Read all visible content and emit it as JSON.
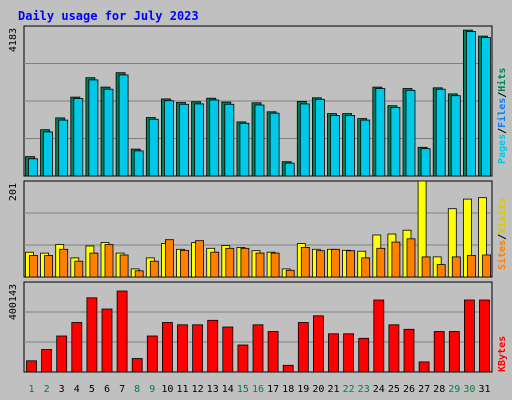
{
  "title": "Daily usage for July 2023",
  "chart_data": [
    {
      "type": "bar",
      "panel": "top",
      "ymax_label": "4183",
      "ymax": 4183,
      "legend": [
        "Pages",
        "Files",
        "Hits"
      ],
      "series": [
        {
          "name": "Hits",
          "color": "#00805c",
          "values": [
            540,
            1290,
            1620,
            2200,
            2740,
            2480,
            2880,
            750,
            1630,
            2150,
            2050,
            2070,
            2170,
            2060,
            1510,
            2040,
            1790,
            400,
            2080,
            2180,
            1740,
            1740,
            1600,
            2480,
            1960,
            2440,
            800,
            2460,
            2290,
            4070,
            3900
          ]
        },
        {
          "name": "Files",
          "color": "#00c8e8",
          "values": [
            480,
            1230,
            1560,
            2160,
            2680,
            2420,
            2820,
            700,
            1580,
            2100,
            2000,
            2010,
            2120,
            2000,
            1470,
            1980,
            1750,
            360,
            2010,
            2140,
            1690,
            1690,
            1560,
            2440,
            1910,
            2390,
            760,
            2420,
            2240,
            4030,
            3860
          ]
        }
      ]
    },
    {
      "type": "bar",
      "panel": "middle",
      "ymax_label": "201",
      "ymax": 201,
      "legend": [
        "Sites",
        "Visits"
      ],
      "series": [
        {
          "name": "Visits",
          "color": "#ffff00",
          "values": [
            52,
            50,
            68,
            40,
            65,
            72,
            50,
            17,
            40,
            70,
            58,
            72,
            60,
            66,
            62,
            55,
            52,
            17,
            70,
            58,
            58,
            56,
            54,
            88,
            90,
            98,
            201,
            42,
            143,
            163,
            166
          ]
        },
        {
          "name": "Sites",
          "color": "#ff8000",
          "values": [
            45,
            45,
            58,
            33,
            50,
            68,
            46,
            13,
            33,
            78,
            56,
            76,
            52,
            60,
            60,
            50,
            50,
            14,
            62,
            55,
            58,
            55,
            40,
            60,
            73,
            80,
            42,
            26,
            42,
            45,
            46
          ]
        }
      ]
    },
    {
      "type": "bar",
      "panel": "bottom",
      "ymax_label": "400143",
      "ymax": 400143,
      "legend": [
        "KBytes"
      ],
      "series": [
        {
          "name": "KBytes",
          "color": "#ff0000",
          "values": [
            50000,
            100000,
            160000,
            220000,
            330000,
            280000,
            360000,
            60000,
            160000,
            220000,
            210000,
            210000,
            230000,
            200000,
            120000,
            210000,
            180000,
            30000,
            220000,
            250000,
            170000,
            170000,
            150000,
            320000,
            210000,
            190000,
            45000,
            180000,
            180000,
            320000,
            320000
          ]
        }
      ]
    }
  ],
  "days": [
    {
      "label": "1",
      "weekend": true
    },
    {
      "label": "2",
      "weekend": true
    },
    {
      "label": "3",
      "weekend": false
    },
    {
      "label": "4",
      "weekend": false
    },
    {
      "label": "5",
      "weekend": false
    },
    {
      "label": "6",
      "weekend": false
    },
    {
      "label": "7",
      "weekend": false
    },
    {
      "label": "8",
      "weekend": true
    },
    {
      "label": "9",
      "weekend": true
    },
    {
      "label": "10",
      "weekend": false
    },
    {
      "label": "11",
      "weekend": false
    },
    {
      "label": "12",
      "weekend": false
    },
    {
      "label": "13",
      "weekend": false
    },
    {
      "label": "14",
      "weekend": false
    },
    {
      "label": "15",
      "weekend": true
    },
    {
      "label": "16",
      "weekend": true
    },
    {
      "label": "17",
      "weekend": false
    },
    {
      "label": "18",
      "weekend": false
    },
    {
      "label": "19",
      "weekend": false
    },
    {
      "label": "20",
      "weekend": false
    },
    {
      "label": "21",
      "weekend": false
    },
    {
      "label": "22",
      "weekend": true
    },
    {
      "label": "23",
      "weekend": true
    },
    {
      "label": "24",
      "weekend": false
    },
    {
      "label": "25",
      "weekend": false
    },
    {
      "label": "26",
      "weekend": false
    },
    {
      "label": "27",
      "weekend": false
    },
    {
      "label": "28",
      "weekend": false
    },
    {
      "label": "29",
      "weekend": true
    },
    {
      "label": "30",
      "weekend": true
    },
    {
      "label": "31",
      "weekend": false
    }
  ],
  "colors": {
    "title": "#0000ff",
    "background": "#c0c0c0",
    "gridline": "#808080",
    "weekend_label": "#008040",
    "weekday_label": "#000000",
    "sep": "#000000"
  }
}
